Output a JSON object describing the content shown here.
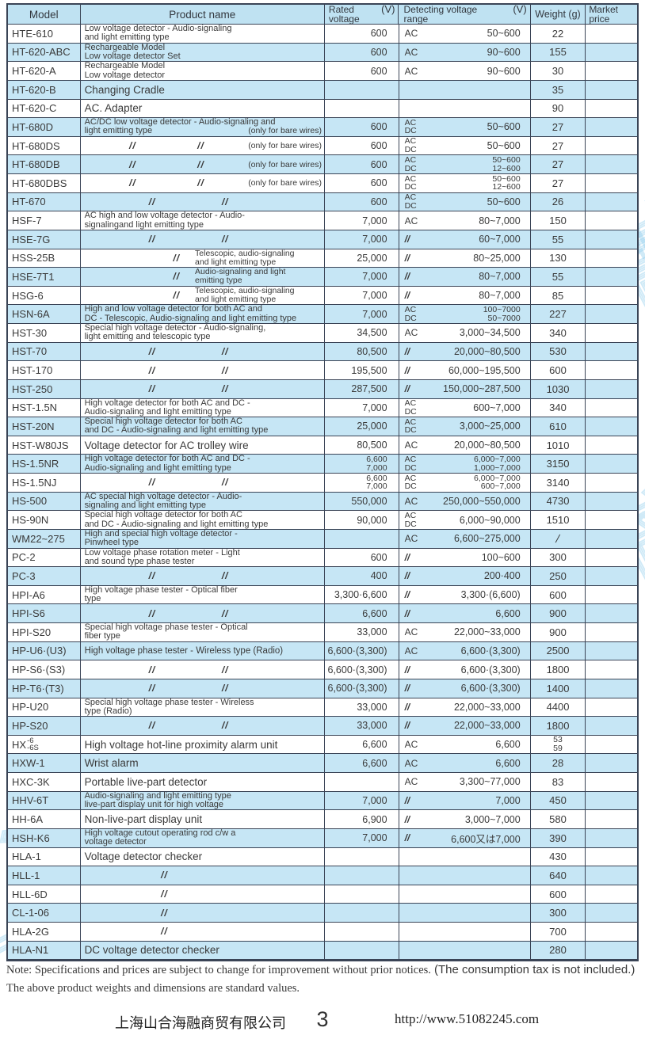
{
  "colors": {
    "border": "#3a4456",
    "row_blue": "#c6e6f5",
    "header_blue": "#bfe2f2",
    "text": "#3a3a3a",
    "watermark": "rgba(150,208,238,0.45)"
  },
  "ditto": "//",
  "watermark_text": "上海山合海融商贸",
  "header": {
    "model": "Model",
    "product": "Product name",
    "rated_l1": "Rated",
    "rated_l2": "voltage",
    "rated_unit": "(V)",
    "det_l1": "Detecting voltage",
    "det_l2": "range",
    "det_unit": "(V)",
    "weight": "Weight (g)",
    "market_l1": "Market",
    "market_l2": "price"
  },
  "rows": [
    {
      "m": "HTE-610",
      "p": {
        "k": "t",
        "size": "sm",
        "lines": [
          "Low voltage detector - Audio-signaling",
          "and light emitting type"
        ]
      },
      "rv": [
        "600"
      ],
      "ds": [
        "AC"
      ],
      "dr": [
        "50~600"
      ],
      "w": [
        "22"
      ]
    },
    {
      "m": "HT-620-ABC",
      "p": {
        "k": "t",
        "size": "sm",
        "lines": [
          "Rechargeable Model",
          "Low voltage detector Set"
        ]
      },
      "rv": [
        "600"
      ],
      "ds": [
        "AC"
      ],
      "dr": [
        "90~600"
      ],
      "w": [
        "155"
      ]
    },
    {
      "m": "HT-620-A",
      "p": {
        "k": "t",
        "size": "sm",
        "lines": [
          "Rechargeable Model",
          "Low voltage detector"
        ]
      },
      "rv": [
        "600"
      ],
      "ds": [
        "AC"
      ],
      "dr": [
        "90~600"
      ],
      "w": [
        "30"
      ]
    },
    {
      "m": "HT-620-B",
      "p": {
        "k": "t",
        "size": "lg",
        "lines": [
          "Changing Cradle"
        ]
      },
      "rv": [],
      "ds": [],
      "dr": [],
      "w": [
        "35"
      ]
    },
    {
      "m": "HT-620-C",
      "p": {
        "k": "t",
        "size": "lg",
        "lines": [
          "AC. Adapter"
        ]
      },
      "rv": [],
      "ds": [],
      "dr": [],
      "w": [
        "90"
      ]
    },
    {
      "m": "HT-680D",
      "p": {
        "k": "tn",
        "lines": [
          "AC/DC low voltage detector - Audio-signaling and",
          "light emitting type"
        ],
        "note": "(only for bare wires)"
      },
      "rv": [
        "600"
      ],
      "ds": [
        "AC",
        "DC"
      ],
      "dr": [
        "50~600"
      ],
      "w": [
        "27"
      ]
    },
    {
      "m": "HT-680DS",
      "p": {
        "k": "d2n",
        "note": "(only for bare wires)"
      },
      "rv": [
        "600"
      ],
      "ds": [
        "AC",
        "DC"
      ],
      "dr": [
        "50~600"
      ],
      "w": [
        "27"
      ]
    },
    {
      "m": "HT-680DB",
      "p": {
        "k": "d2n",
        "note": "(only for bare wires)"
      },
      "rv": [
        "600"
      ],
      "ds": [
        "AC",
        "DC"
      ],
      "dr": [
        "50~600",
        "12~600"
      ],
      "w": [
        "27"
      ]
    },
    {
      "m": "HT-680DBS",
      "p": {
        "k": "d2n",
        "note": "(only for bare wires)"
      },
      "rv": [
        "600"
      ],
      "ds": [
        "AC",
        "DC"
      ],
      "dr": [
        "50~600",
        "12~600"
      ],
      "w": [
        "27"
      ]
    },
    {
      "m": "HT-670",
      "p": {
        "k": "d2"
      },
      "rv": [
        "600"
      ],
      "ds": [
        "AC",
        "DC"
      ],
      "dr": [
        "50~600"
      ],
      "w": [
        "26"
      ]
    },
    {
      "m": "HSF-7",
      "p": {
        "k": "t",
        "size": "sm",
        "lines": [
          "AC high and low voltage detector - Audio-",
          "signalingand light emitting type"
        ]
      },
      "rv": [
        "7,000"
      ],
      "ds": [
        "AC"
      ],
      "dr": [
        "80~7,000"
      ],
      "w": [
        "150"
      ]
    },
    {
      "m": "HSE-7G",
      "p": {
        "k": "d2"
      },
      "rv": [
        "7,000"
      ],
      "ds": [
        "//"
      ],
      "dr": [
        "60~7,000"
      ],
      "w": [
        "55"
      ]
    },
    {
      "m": "HSS-25B",
      "p": {
        "k": "dd",
        "desc": [
          "Telescopic, audio-signaling",
          "and light emitting type"
        ]
      },
      "rv": [
        "25,000"
      ],
      "ds": [
        "//"
      ],
      "dr": [
        "80~25,000"
      ],
      "w": [
        "130"
      ]
    },
    {
      "m": "HSE-7T1",
      "p": {
        "k": "dd",
        "desc": [
          "Audio-signaling and light",
          "emitting type"
        ]
      },
      "rv": [
        "7,000"
      ],
      "ds": [
        "//"
      ],
      "dr": [
        "80~7,000"
      ],
      "w": [
        "55"
      ]
    },
    {
      "m": "HSG-6",
      "p": {
        "k": "dd",
        "desc": [
          "Telescopic, audio-signaling",
          "and light emitting type"
        ]
      },
      "rv": [
        "7,000"
      ],
      "ds": [
        "//"
      ],
      "dr": [
        "80~7,000"
      ],
      "w": [
        "85"
      ]
    },
    {
      "m": "HSN-6A",
      "p": {
        "k": "t",
        "size": "sm",
        "lines": [
          "High and low voltage detector for both AC and",
          "DC - Telescopic, Audio-signaling and light emitting type"
        ]
      },
      "rv": [
        "7,000"
      ],
      "ds": [
        "AC",
        "DC"
      ],
      "dr": [
        "100~7000",
        "50~7000"
      ],
      "w": [
        "227"
      ]
    },
    {
      "m": "HST-30",
      "p": {
        "k": "t",
        "size": "sm",
        "lines": [
          "Special high voltage detector - Audio-signaling,",
          "light emitting and telescopic type"
        ]
      },
      "rv": [
        "34,500"
      ],
      "ds": [
        "AC"
      ],
      "dr": [
        "3,000~34,500"
      ],
      "w": [
        "340"
      ]
    },
    {
      "m": "HST-70",
      "p": {
        "k": "d2"
      },
      "rv": [
        "80,500"
      ],
      "ds": [
        "//"
      ],
      "dr": [
        "20,000~80,500"
      ],
      "w": [
        "530"
      ]
    },
    {
      "m": "HST-170",
      "p": {
        "k": "d2"
      },
      "rv": [
        "195,500"
      ],
      "ds": [
        "//"
      ],
      "dr": [
        "60,000~195,500"
      ],
      "w": [
        "600"
      ]
    },
    {
      "m": "HST-250",
      "p": {
        "k": "d2"
      },
      "rv": [
        "287,500"
      ],
      "ds": [
        "//"
      ],
      "dr": [
        "150,000~287,500"
      ],
      "w": [
        "1030"
      ]
    },
    {
      "m": "HST-1.5N",
      "p": {
        "k": "t",
        "size": "sm",
        "lines": [
          "High voltage detector for both AC and DC -",
          "Audio-signaling and light emitting type"
        ]
      },
      "rv": [
        "7,000"
      ],
      "ds": [
        "AC",
        "DC"
      ],
      "dr": [
        "600~7,000"
      ],
      "w": [
        "340"
      ]
    },
    {
      "m": "HST-20N",
      "p": {
        "k": "t",
        "size": "sm",
        "lines": [
          "Special high voltage detector for both AC",
          "and DC - Audio-signaling and light emitting type"
        ]
      },
      "rv": [
        "25,000"
      ],
      "ds": [
        "AC",
        "DC"
      ],
      "dr": [
        "3,000~25,000"
      ],
      "w": [
        "610"
      ]
    },
    {
      "m": "HST-W80JS",
      "p": {
        "k": "t",
        "size": "lg",
        "lines": [
          "Voltage detector for AC trolley wire"
        ]
      },
      "rv": [
        "80,500"
      ],
      "ds": [
        "AC"
      ],
      "dr": [
        "20,000~80,500"
      ],
      "w": [
        "1010"
      ]
    },
    {
      "m": "HS-1.5NR",
      "p": {
        "k": "t",
        "size": "sm",
        "lines": [
          "High voltage detector for both AC and DC -",
          "Audio-signaling and light emitting type"
        ]
      },
      "rv": [
        "6,600",
        "7,000"
      ],
      "ds": [
        "AC",
        "DC"
      ],
      "dr": [
        "6,000~7,000",
        "1,000~7,000"
      ],
      "w": [
        "3150"
      ]
    },
    {
      "m": "HS-1.5NJ",
      "p": {
        "k": "d2"
      },
      "rv": [
        "6,600",
        "7,000"
      ],
      "ds": [
        "AC",
        "DC"
      ],
      "dr": [
        "6,000~7,000",
        "600~7,000"
      ],
      "w": [
        "3140"
      ]
    },
    {
      "m": "HS-500",
      "p": {
        "k": "t",
        "size": "sm",
        "lines": [
          "AC special high voltage detector - Audio-",
          "signaling and light emitting type"
        ]
      },
      "rv": [
        "550,000"
      ],
      "ds": [
        "AC"
      ],
      "dr": [
        "250,000~550,000"
      ],
      "w": [
        "4730"
      ]
    },
    {
      "m": "HS-90N",
      "p": {
        "k": "t",
        "size": "sm",
        "lines": [
          "Special high voltage detector for both AC",
          "and DC - Audio-signaling and light emitting type"
        ]
      },
      "rv": [
        "90,000"
      ],
      "ds": [
        "AC",
        "DC"
      ],
      "dr": [
        "6,000~90,000"
      ],
      "w": [
        "1510"
      ]
    },
    {
      "m": "WM22~275",
      "p": {
        "k": "t",
        "size": "sm",
        "lines": [
          "High and special high voltage detector -",
          "Pinwheel type"
        ]
      },
      "rv": [],
      "ds": [
        "AC"
      ],
      "dr": [
        "6,600~275,000"
      ],
      "w": [
        "/"
      ]
    },
    {
      "m": "PC-2",
      "p": {
        "k": "t",
        "size": "sm",
        "lines": [
          "Low voltage phase rotation meter - Light",
          "and sound type phase tester"
        ]
      },
      "rv": [
        "600"
      ],
      "ds": [
        "//"
      ],
      "dr": [
        "100~600"
      ],
      "w": [
        "300"
      ]
    },
    {
      "m": "PC-3",
      "p": {
        "k": "d2"
      },
      "rv": [
        "400"
      ],
      "ds": [
        "//"
      ],
      "dr": [
        "200·400"
      ],
      "w": [
        "250"
      ]
    },
    {
      "m": "HPI-A6",
      "p": {
        "k": "t",
        "size": "sm",
        "lines": [
          "High voltage phase tester - Optical fiber",
          "type"
        ]
      },
      "rv": [
        "3,300·6,600"
      ],
      "ds": [
        "//"
      ],
      "dr": [
        "3,300·(6,600)"
      ],
      "w": [
        "600"
      ]
    },
    {
      "m": "HPI-S6",
      "p": {
        "k": "d2"
      },
      "rv": [
        "6,600"
      ],
      "ds": [
        "//"
      ],
      "dr": [
        "6,600"
      ],
      "w": [
        "900"
      ]
    },
    {
      "m": "HPI-S20",
      "p": {
        "k": "t",
        "size": "sm",
        "lines": [
          "Special high voltage phase tester - Optical",
          "fiber type"
        ]
      },
      "rv": [
        "33,000"
      ],
      "ds": [
        "AC"
      ],
      "dr": [
        "22,000~33,000"
      ],
      "w": [
        "900"
      ]
    },
    {
      "m": "HP-U6·(U3)",
      "p": {
        "k": "t",
        "size": "md",
        "lines": [
          "High voltage phase tester - Wireless type (Radio)"
        ]
      },
      "rv": [
        "6,600·(3,300)"
      ],
      "ds": [
        "AC"
      ],
      "dr": [
        "6,600·(3,300)"
      ],
      "w": [
        "2500"
      ]
    },
    {
      "m": "HP-S6·(S3)",
      "p": {
        "k": "d2"
      },
      "rv": [
        "6,600·(3,300)"
      ],
      "ds": [
        "//"
      ],
      "dr": [
        "6,600·(3,300)"
      ],
      "w": [
        "1800"
      ]
    },
    {
      "m": "HP-T6·(T3)",
      "p": {
        "k": "d2"
      },
      "rv": [
        "6,600·(3,300)"
      ],
      "ds": [
        "//"
      ],
      "dr": [
        "6,600·(3,300)"
      ],
      "w": [
        "1400"
      ]
    },
    {
      "m": "HP-U20",
      "p": {
        "k": "t",
        "size": "sm",
        "lines": [
          "Special high voltage phase tester - Wireless",
          "type (Radio)"
        ]
      },
      "rv": [
        "33,000"
      ],
      "ds": [
        "//"
      ],
      "dr": [
        "22,000~33,000"
      ],
      "w": [
        "4400"
      ]
    },
    {
      "m": "HP-S20",
      "p": {
        "k": "d2"
      },
      "rv": [
        "33,000"
      ],
      "ds": [
        "//"
      ],
      "dr": [
        "22,000~33,000"
      ],
      "w": [
        "1800"
      ]
    },
    {
      "m": "HX",
      "ms": [
        "-6",
        "-6S"
      ],
      "p": {
        "k": "t",
        "size": "lg",
        "lines": [
          "High voltage hot-line proximity alarm unit"
        ]
      },
      "rv": [
        "6,600"
      ],
      "ds": [
        "AC"
      ],
      "dr": [
        "6,600"
      ],
      "w": [
        "53",
        "59"
      ]
    },
    {
      "m": "HXW-1",
      "p": {
        "k": "t",
        "size": "lg",
        "lines": [
          "Wrist alarm"
        ]
      },
      "rv": [
        "6,600"
      ],
      "ds": [
        "AC"
      ],
      "dr": [
        "6,600"
      ],
      "w": [
        "28"
      ]
    },
    {
      "m": "HXC-3K",
      "p": {
        "k": "t",
        "size": "lg",
        "lines": [
          "Portable live-part detector"
        ]
      },
      "rv": [],
      "ds": [
        "AC"
      ],
      "dr": [
        "3,300~77,000"
      ],
      "w": [
        "83"
      ]
    },
    {
      "m": "HHV-6T",
      "p": {
        "k": "t",
        "size": "sm",
        "lines": [
          "Audio-signaling and light emitting type",
          "live-part display unit for high voltage"
        ]
      },
      "rv": [
        "7,000"
      ],
      "ds": [
        "//"
      ],
      "dr": [
        "7,000"
      ],
      "w": [
        "450"
      ]
    },
    {
      "m": "HH-6A",
      "p": {
        "k": "t",
        "size": "lg",
        "lines": [
          "Non-live-part display unit"
        ]
      },
      "rv": [
        "6,900"
      ],
      "ds": [
        "//"
      ],
      "dr": [
        "3,000~7,000"
      ],
      "w": [
        "580"
      ]
    },
    {
      "m": "HSH-K6",
      "p": {
        "k": "t",
        "size": "sm",
        "lines": [
          "High voltage cutout operating rod c/w a",
          "voltage detector"
        ]
      },
      "rv": [
        "7,000"
      ],
      "ds": [
        "//"
      ],
      "dr": [
        "6,600又は7,000"
      ],
      "w": [
        "390"
      ]
    },
    {
      "m": "HLA-1",
      "p": {
        "k": "t",
        "size": "lg",
        "lines": [
          "Voltage detector checker"
        ]
      },
      "rv": [],
      "ds": [],
      "dr": [],
      "w": [
        "430"
      ]
    },
    {
      "m": "HLL-1",
      "p": {
        "k": "d1"
      },
      "rv": [],
      "ds": [],
      "dr": [],
      "w": [
        "640"
      ]
    },
    {
      "m": "HLL-6D",
      "p": {
        "k": "d1"
      },
      "rv": [],
      "ds": [],
      "dr": [],
      "w": [
        "600"
      ]
    },
    {
      "m": "CL-1-06",
      "p": {
        "k": "d1"
      },
      "rv": [],
      "ds": [],
      "dr": [],
      "w": [
        "300"
      ]
    },
    {
      "m": "HLA-2G",
      "p": {
        "k": "d1"
      },
      "rv": [],
      "ds": [],
      "dr": [],
      "w": [
        "700"
      ]
    },
    {
      "m": "HLA-N1",
      "p": {
        "k": "t",
        "size": "lg",
        "lines": [
          "DC voltage detector checker"
        ]
      },
      "rv": [],
      "ds": [],
      "dr": [],
      "w": [
        "280"
      ]
    }
  ],
  "notes": {
    "line1_serif": "Note: Specifications and prices are subject to change for improvement without prior notices.",
    "line1_sans": "(The consumption tax is not included.)",
    "line2": "The above product weights and dimensions are standard values."
  },
  "footer": {
    "company": "上海山合海融商贸有限公司",
    "page_number": "3",
    "url": "http://www.51082245.com"
  }
}
